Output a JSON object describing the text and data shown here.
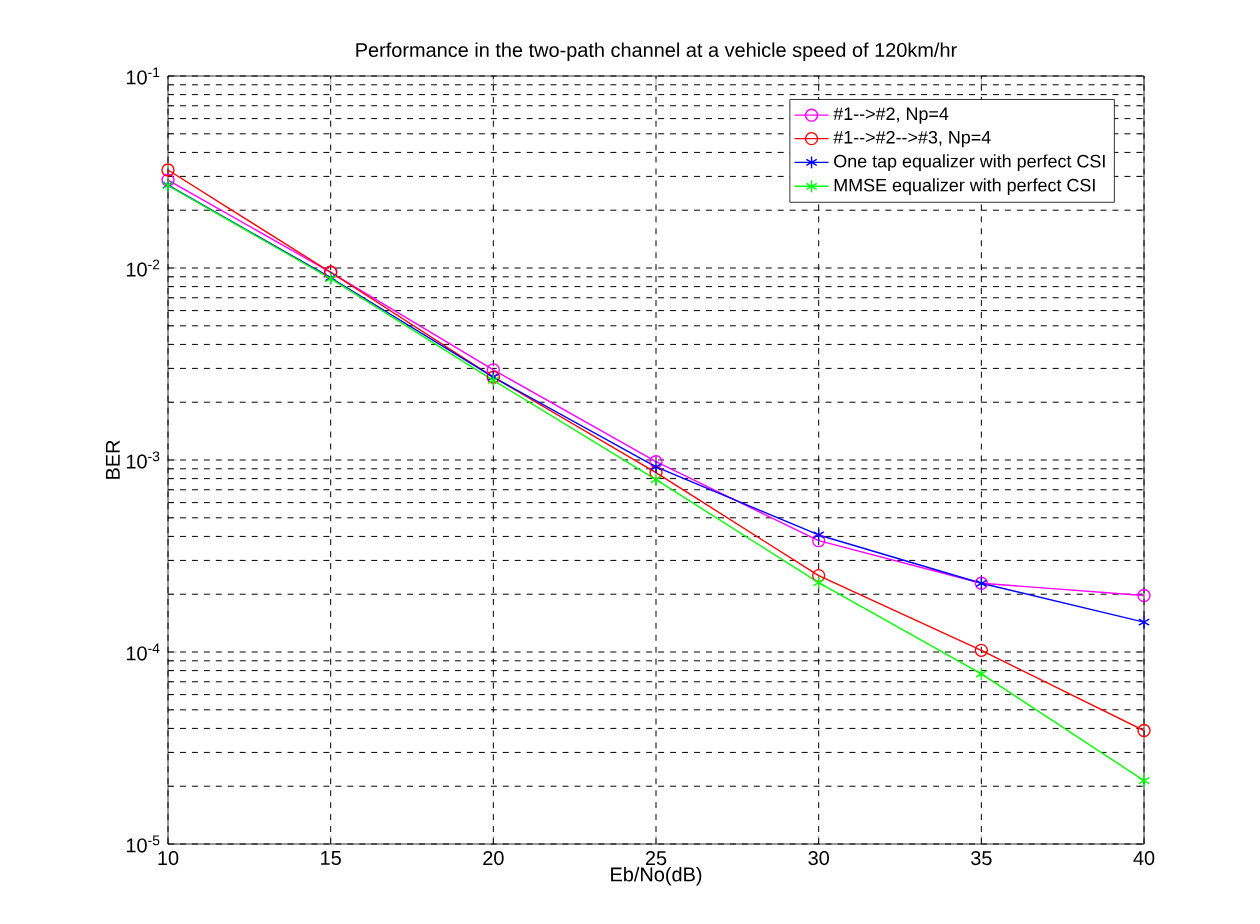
{
  "chart_data": {
    "type": "line",
    "title": "Performance in the two-path channel at a vehicle speed of 120km/hr",
    "xlabel": "Eb/No(dB)",
    "ylabel": "BER",
    "x": [
      10,
      15,
      20,
      25,
      30,
      35,
      40
    ],
    "series": [
      {
        "name": "#1-->#2, Np=4",
        "color": "#ff00ff",
        "marker": "circle",
        "values": [
          0.0287,
          0.0095,
          0.00295,
          0.00098,
          0.00038,
          0.000228,
          0.000197
        ]
      },
      {
        "name": "#1-->#2-->#3, Np=4",
        "color": "#ff0000",
        "marker": "circle",
        "values": [
          0.0324,
          0.0095,
          0.0027,
          0.00086,
          0.00025,
          0.000102,
          3.9e-05
        ]
      },
      {
        "name": "One tap equalizer with perfect CSI",
        "color": "#0000ff",
        "marker": "cross",
        "values": [
          0.027,
          0.0089,
          0.0027,
          0.00092,
          0.000407,
          0.000228,
          0.000143
        ]
      },
      {
        "name": "MMSE equalizer with perfect CSI",
        "color": "#00ff00",
        "marker": "cross",
        "values": [
          0.0269,
          0.0088,
          0.0026,
          0.00079,
          0.00023,
          7.7e-05,
          2.14e-05
        ]
      }
    ],
    "xlim": [
      10,
      40
    ],
    "xticks": [
      10,
      15,
      20,
      25,
      30,
      35,
      40
    ],
    "ylim": [
      1e-05,
      0.1
    ],
    "yticks": [
      {
        "value": 1e-05,
        "label": "10$^{-5}$"
      },
      {
        "value": 0.0001,
        "label": "10$^{-4}$"
      },
      {
        "value": 0.001,
        "label": "10$^{-3}$"
      },
      {
        "value": 0.01,
        "label": "10$^{-2}$"
      },
      {
        "value": 0.1,
        "label": "10$^{-1}$"
      }
    ],
    "log": "y",
    "grid": true,
    "legend": "top right",
    "line_style": "solid"
  }
}
